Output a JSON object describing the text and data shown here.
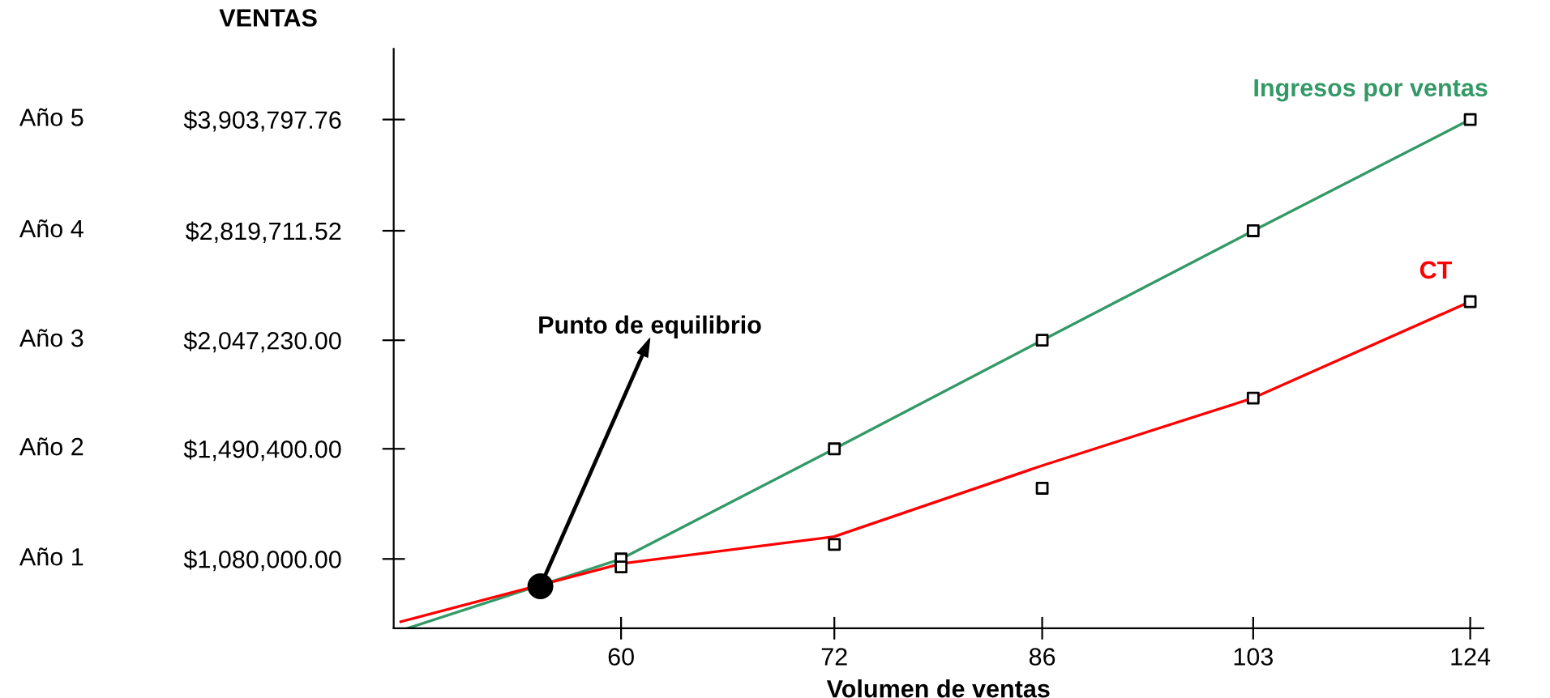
{
  "chart_data": {
    "type": "line",
    "xlabel": "Volumen de ventas",
    "ylabel": "VENTAS",
    "log": "xy",
    "xlim": [
      49.4,
      125.4
    ],
    "ylim": [
      882000,
      4800000
    ],
    "xticks": [
      60,
      72,
      86,
      103,
      124
    ],
    "yticks": [
      {
        "value": 1080000,
        "label": "$1,080,000.00"
      },
      {
        "value": 1490400,
        "label": "$1,490,400.00"
      },
      {
        "value": 2047230,
        "label": "$2,047,230.00"
      },
      {
        "value": 2819711.52,
        "label": "$2,819,711.52"
      },
      {
        "value": 3903797.76,
        "label": "$3,903,797.76"
      }
    ],
    "series": [
      {
        "name": "Ingresos por ventas",
        "color": "#339966",
        "x": [
          50.0,
          60,
          72,
          86,
          103,
          124
        ],
        "values": [
          882000,
          1080000,
          1490400,
          2047230,
          2819711.52,
          3903797.76
        ]
      },
      {
        "name": "CT",
        "color": "#ff0000",
        "x": [
          49.7,
          60,
          72,
          86,
          103,
          124
        ],
        "values": [
          899000,
          1065000,
          1153000,
          1419000,
          1729000,
          2292000
        ]
      },
      {
        "type": "scatter",
        "color": "#000000",
        "marker": "square",
        "x": [
          60,
          72,
          86,
          103,
          124,
          60,
          72,
          86,
          103,
          124
        ],
        "values": [
          1080000,
          1490400,
          2047230,
          2819711.52,
          3903797.76,
          1055000,
          1127000,
          1328000,
          1729000,
          2292000
        ]
      },
      {
        "type": "scatter",
        "color": "#000000",
        "marker": "circle",
        "x": [
          56.0
        ],
        "values": [
          997000
        ]
      }
    ],
    "annotations": [
      "Punto de equilibrio",
      "Año 1",
      "Año 2",
      "Año 3",
      "Año 4",
      "Año 5"
    ],
    "grid": false,
    "legend": false
  }
}
